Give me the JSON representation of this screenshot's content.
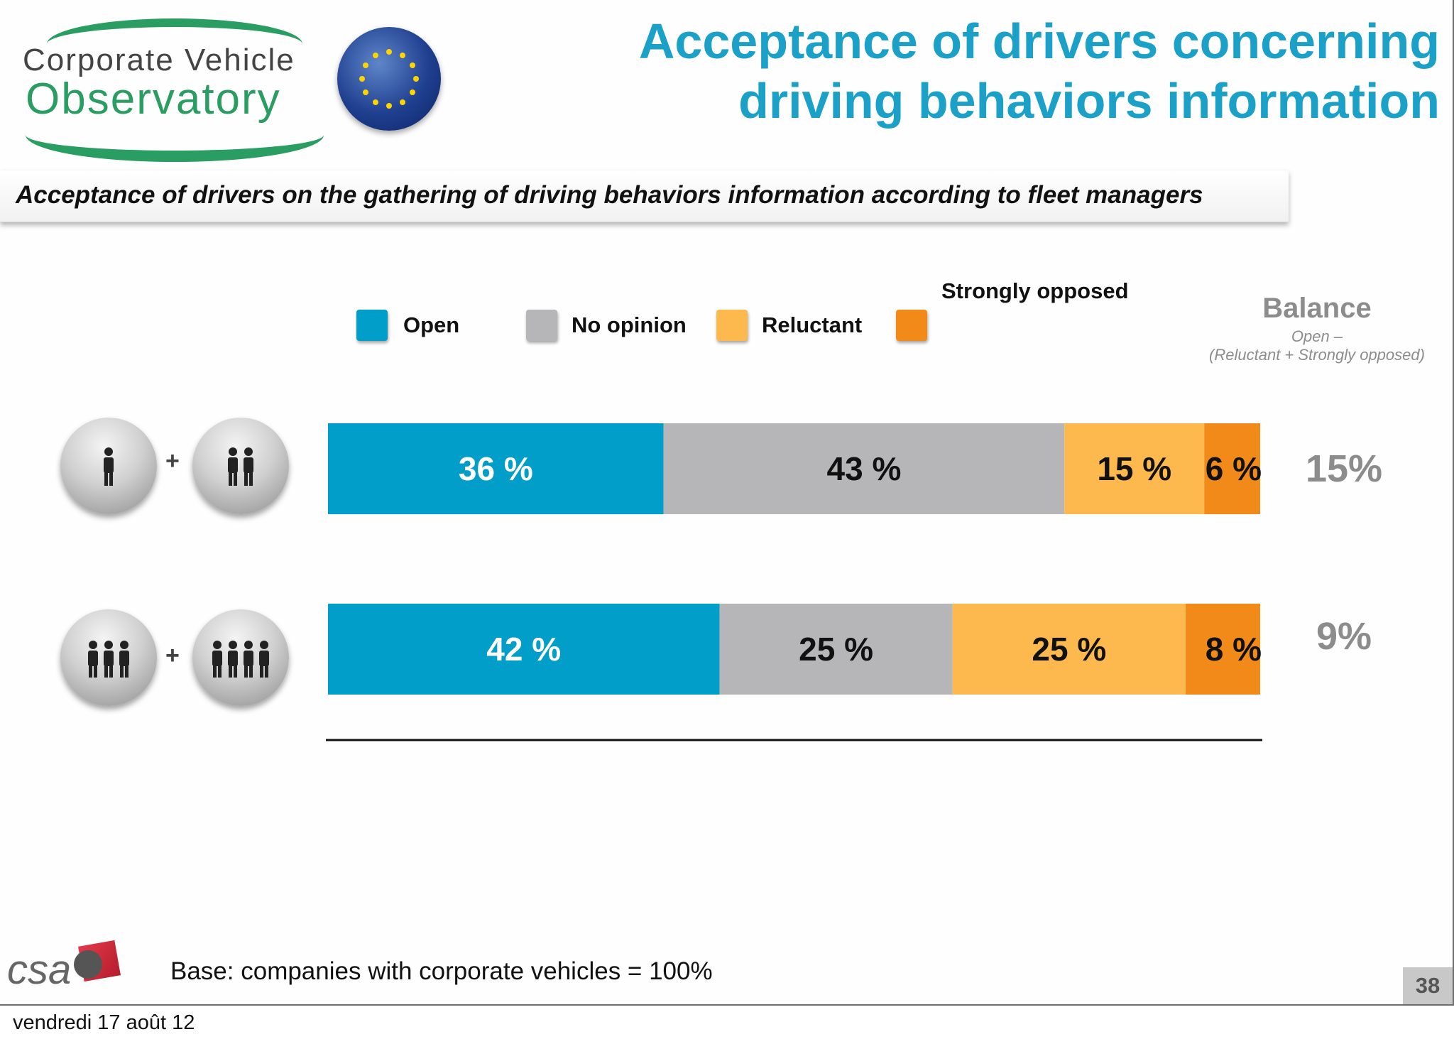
{
  "logo": {
    "line1": "Corporate Vehicle",
    "line2": "Observatory"
  },
  "header": {
    "title_line1": "Acceptance of drivers concerning",
    "title_line2": "driving behaviors information"
  },
  "subtitle": "Acceptance of drivers on the gathering of driving behaviors information according to fleet managers",
  "legend": {
    "open": "Open",
    "no_opinion": "No opinion",
    "reluctant": "Reluctant",
    "strongly_opposed": "Strongly opposed"
  },
  "balance": {
    "title": "Balance",
    "formula_line1": "Open –",
    "formula_line2": "(Reluctant + Strongly opposed)"
  },
  "colors": {
    "open": "#009ec8",
    "no_opinion": "#b6b5b8",
    "reluctant": "#fdb94e",
    "strongly_opposed": "#f28a1a",
    "title": "#1ba0c8",
    "balance": "#8c8c8c"
  },
  "icons": {
    "row1_left": "single-person-icon",
    "row1_right": "two-persons-icon",
    "row2_left": "three-persons-icon",
    "row2_right": "four-persons-icon"
  },
  "chart_data": {
    "type": "bar",
    "orientation": "horizontal",
    "stacked": true,
    "categories": [
      "Row 1",
      "Row 2"
    ],
    "series": [
      {
        "name": "Open",
        "values": [
          36,
          42
        ],
        "labels": [
          "36 %",
          "42 %"
        ]
      },
      {
        "name": "No opinion",
        "values": [
          43,
          25
        ],
        "labels": [
          "43 %",
          "25 %"
        ]
      },
      {
        "name": "Reluctant",
        "values": [
          15,
          25
        ],
        "labels": [
          "15 %",
          "25 %"
        ]
      },
      {
        "name": "Strongly opposed",
        "values": [
          6,
          8
        ],
        "labels": [
          "6 %",
          "8 %"
        ]
      }
    ],
    "balance_values": [
      "15%",
      "9%"
    ],
    "xlim": [
      0,
      100
    ],
    "legend_position": "top"
  },
  "footer": {
    "base_note": "Base: companies with corporate vehicles = 100%",
    "csa_logo": "csa",
    "page_number": "38",
    "date": "vendredi 17 août 12"
  }
}
